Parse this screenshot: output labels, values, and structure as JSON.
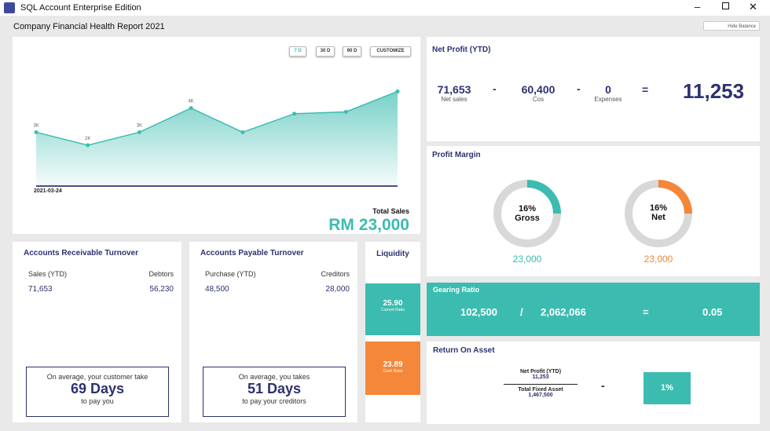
{
  "window": {
    "title": "SQL Account Enterprise Edition"
  },
  "header": {
    "title": "Company Financial Health Report 2021",
    "hide_button": "Hide Balance"
  },
  "sales": {
    "ranges": [
      "7 D",
      "30 D",
      "90 D",
      "CUSTOMIZE"
    ],
    "total_label": "Total Sales",
    "total": "RM 23,000"
  },
  "chart_data": {
    "type": "area",
    "x_label": "2021-03-24",
    "values": [
      2.9,
      2.2,
      2.9,
      4.2,
      2.9,
      3.9,
      4.0,
      5.1
    ],
    "value_labels": [
      "3K",
      "2K",
      "3K",
      "4K",
      null,
      null,
      null,
      null
    ],
    "ylim": [
      0,
      5.5
    ],
    "color": "#3dbdb0"
  },
  "net_profit": {
    "title": "Net Profit (YTD)",
    "items": [
      {
        "value": "71,653",
        "label": "Net sales"
      },
      {
        "value": "60,400",
        "label": "Cos"
      },
      {
        "value": "0",
        "label": "Expenses"
      }
    ],
    "operators": [
      "-",
      "-",
      "="
    ],
    "result": "11,253"
  },
  "profit_margin": {
    "title": "Profit Margin",
    "gauges": [
      {
        "percent": "16%",
        "label": "Gross",
        "amount": "23,000"
      },
      {
        "percent": "16%",
        "label": "Net",
        "amount": "23,000"
      }
    ]
  },
  "gearing": {
    "title": "Gearing Ratio",
    "left": "102,500",
    "op1": "/",
    "right": "2,062,066",
    "op2": "=",
    "result": "0.05"
  },
  "roa": {
    "title": "Return On Asset",
    "numerator_label": "Net Profit (YTD)",
    "numerator": "11,253",
    "denominator_label": "Total Fixed Asset",
    "denominator": "1,467,500",
    "op": "-",
    "result": "1%"
  },
  "receivable": {
    "title": "Accounts Receivable Turnover",
    "col1": "Sales (YTD)",
    "col2": "Debtors",
    "val1": "71,653",
    "val2": "56,230",
    "note_pre": "On average, your customer take",
    "days": "69 Days",
    "note_post": "to pay you"
  },
  "payable": {
    "title": "Accounts Payable Turnover",
    "col1": "Purchase (YTD)",
    "col2": "Creditors",
    "val1": "48,500",
    "val2": "28,000",
    "note_pre": "On average, you takes",
    "days": "51 Days",
    "note_post": "to pay your creditors"
  },
  "liquidity": {
    "title": "Liquidity",
    "current": {
      "value": "25.90",
      "label": "Current Ratio"
    },
    "cash": {
      "value": "23.89",
      "label": "Cash Ratio"
    }
  }
}
